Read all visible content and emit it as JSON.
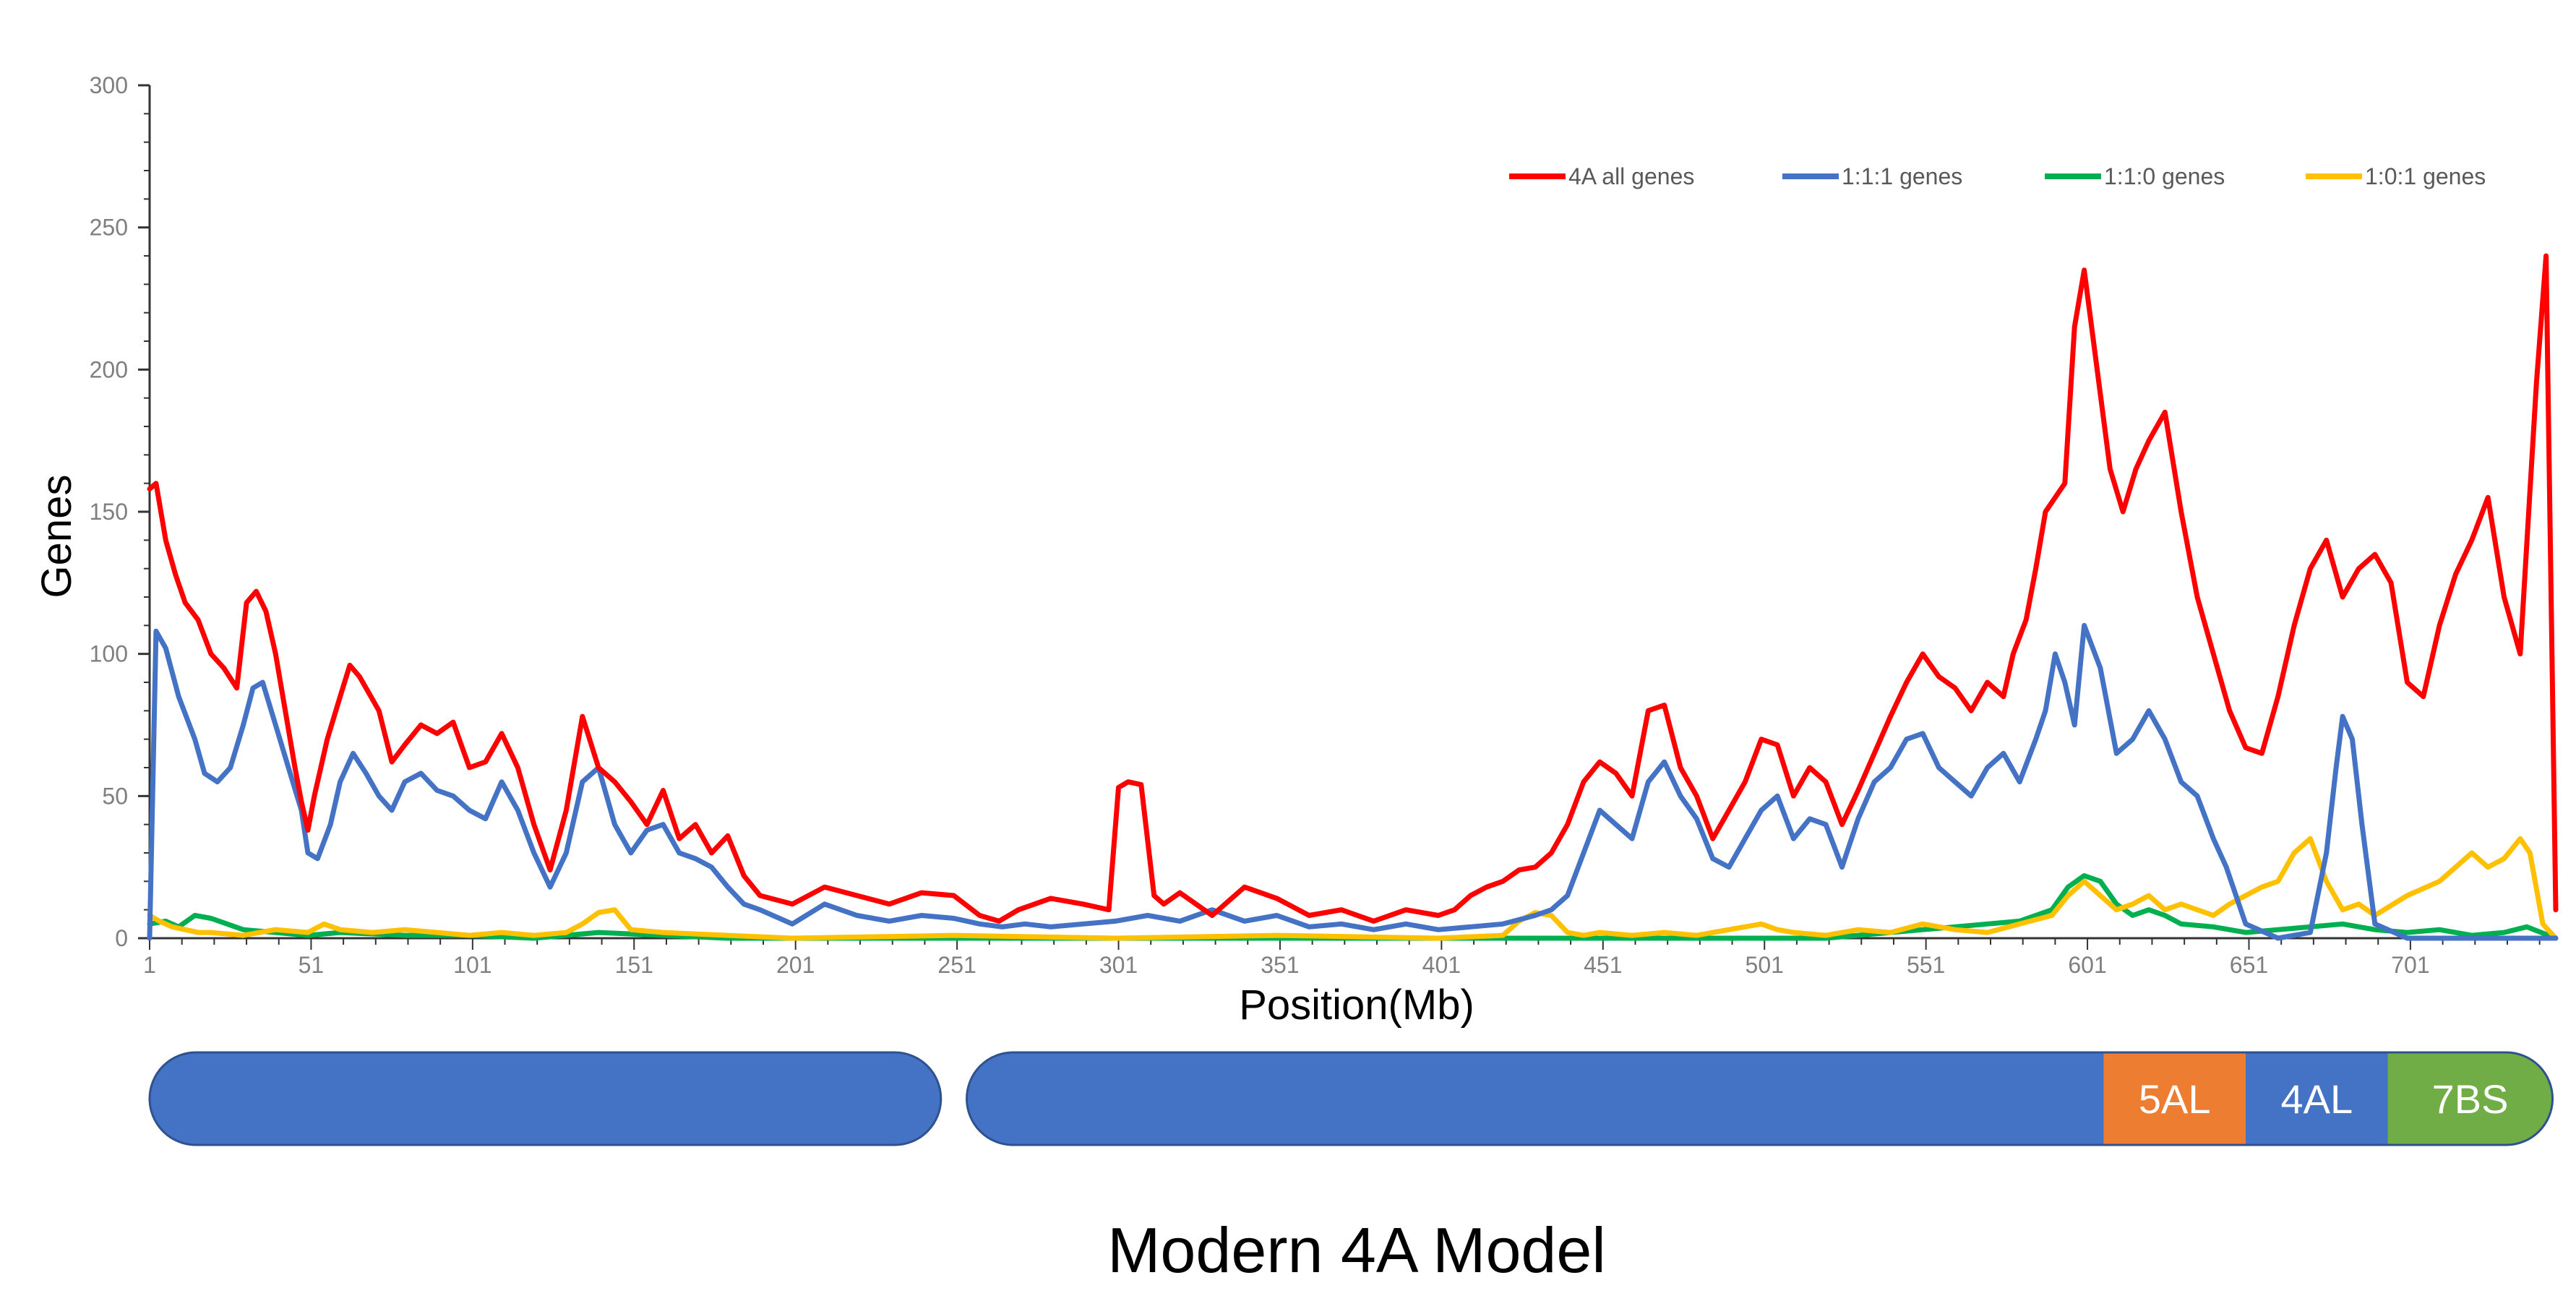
{
  "figure": {
    "title": "Modern 4A Model"
  },
  "chart_data": {
    "type": "line",
    "xlabel": "Position(Mb)",
    "ylabel": "Genes",
    "xlim": [
      1,
      746
    ],
    "ylim": [
      0,
      300
    ],
    "x_ticks": [
      1,
      51,
      101,
      151,
      201,
      251,
      301,
      351,
      401,
      451,
      501,
      551,
      601,
      651,
      701
    ],
    "x_tick_labels": [
      "1",
      "51",
      "101",
      "151",
      "201",
      "251",
      "301",
      "351",
      "401",
      "451",
      "501",
      "551",
      "601",
      "651",
      "701"
    ],
    "y_ticks": [
      0,
      50,
      100,
      150,
      200,
      250,
      300
    ],
    "y_tick_labels": [
      "0",
      "50",
      "100",
      "150",
      "200",
      "250",
      "300"
    ],
    "grid": false,
    "legend_position": "top-right",
    "series": [
      {
        "name": "4A all genes",
        "color": "#ff0000",
        "x": [
          1,
          3,
          6,
          9,
          12,
          16,
          20,
          24,
          28,
          31,
          34,
          37,
          40,
          43,
          46,
          48,
          50,
          52,
          56,
          60,
          63,
          66,
          69,
          72,
          76,
          80,
          85,
          90,
          95,
          100,
          105,
          110,
          115,
          120,
          125,
          130,
          135,
          140,
          145,
          150,
          155,
          160,
          165,
          170,
          175,
          180,
          185,
          190,
          200,
          210,
          220,
          230,
          240,
          250,
          258,
          264,
          270,
          280,
          290,
          298,
          301,
          304,
          308,
          312,
          315,
          320,
          330,
          340,
          350,
          360,
          370,
          380,
          390,
          400,
          405,
          410,
          415,
          420,
          425,
          430,
          435,
          440,
          445,
          450,
          455,
          460,
          465,
          470,
          475,
          480,
          485,
          490,
          495,
          500,
          505,
          510,
          515,
          520,
          525,
          530,
          535,
          540,
          545,
          550,
          555,
          560,
          565,
          570,
          575,
          578,
          582,
          585,
          588,
          591,
          594,
          597,
          600,
          604,
          608,
          612,
          616,
          620,
          625,
          630,
          635,
          640,
          645,
          650,
          655,
          660,
          665,
          670,
          675,
          680,
          685,
          690,
          695,
          700,
          705,
          710,
          715,
          720,
          725,
          730,
          735,
          740,
          743,
          746
        ],
        "y": [
          158,
          160,
          140,
          128,
          118,
          112,
          100,
          95,
          88,
          118,
          122,
          115,
          100,
          80,
          60,
          48,
          38,
          50,
          70,
          85,
          96,
          92,
          86,
          80,
          62,
          68,
          75,
          72,
          76,
          60,
          62,
          72,
          60,
          40,
          24,
          45,
          78,
          60,
          55,
          48,
          40,
          52,
          35,
          40,
          30,
          36,
          22,
          15,
          12,
          18,
          15,
          12,
          16,
          15,
          8,
          6,
          10,
          14,
          12,
          10,
          53,
          55,
          54,
          15,
          12,
          16,
          8,
          18,
          14,
          8,
          10,
          6,
          10,
          8,
          10,
          15,
          18,
          20,
          24,
          25,
          30,
          40,
          55,
          62,
          58,
          50,
          80,
          82,
          60,
          50,
          35,
          45,
          55,
          70,
          68,
          50,
          60,
          55,
          40,
          52,
          65,
          78,
          90,
          100,
          92,
          88,
          80,
          90,
          85,
          100,
          112,
          130,
          150,
          155,
          160,
          215,
          235,
          200,
          165,
          150,
          165,
          175,
          185,
          150,
          120,
          100,
          80,
          67,
          65,
          85,
          110,
          130,
          140,
          120,
          130,
          135,
          125,
          90,
          85,
          110,
          128,
          140,
          155,
          120,
          100,
          195,
          240,
          10
        ],
        "end_drop": true
      },
      {
        "name": "1:1:1 genes",
        "color": "#4472c4",
        "x": [
          1,
          3,
          6,
          10,
          15,
          18,
          22,
          26,
          30,
          33,
          36,
          40,
          44,
          48,
          50,
          53,
          57,
          60,
          64,
          68,
          72,
          76,
          80,
          85,
          90,
          95,
          100,
          105,
          110,
          115,
          120,
          125,
          130,
          135,
          140,
          145,
          150,
          155,
          160,
          165,
          170,
          175,
          180,
          185,
          190,
          200,
          210,
          220,
          230,
          240,
          250,
          258,
          265,
          272,
          280,
          290,
          300,
          310,
          320,
          330,
          340,
          350,
          360,
          370,
          380,
          390,
          400,
          410,
          420,
          430,
          435,
          440,
          445,
          450,
          455,
          460,
          465,
          470,
          475,
          480,
          485,
          490,
          495,
          500,
          505,
          510,
          515,
          520,
          525,
          530,
          535,
          540,
          545,
          550,
          555,
          560,
          565,
          570,
          575,
          580,
          585,
          588,
          591,
          594,
          597,
          600,
          605,
          610,
          615,
          620,
          625,
          630,
          635,
          640,
          644,
          650,
          660,
          670,
          675,
          678,
          680,
          683,
          686,
          690,
          700,
          710,
          720,
          730,
          746
        ],
        "y": [
          0,
          108,
          102,
          85,
          70,
          58,
          55,
          60,
          75,
          88,
          90,
          75,
          60,
          45,
          30,
          28,
          40,
          55,
          65,
          58,
          50,
          45,
          55,
          58,
          52,
          50,
          45,
          42,
          55,
          45,
          30,
          18,
          30,
          55,
          60,
          40,
          30,
          38,
          40,
          30,
          28,
          25,
          18,
          12,
          10,
          5,
          12,
          8,
          6,
          8,
          7,
          5,
          4,
          5,
          4,
          5,
          6,
          8,
          6,
          10,
          6,
          8,
          4,
          5,
          3,
          5,
          3,
          4,
          5,
          8,
          10,
          15,
          30,
          45,
          40,
          35,
          55,
          62,
          50,
          42,
          28,
          25,
          35,
          45,
          50,
          35,
          42,
          40,
          25,
          42,
          55,
          60,
          70,
          72,
          60,
          55,
          50,
          60,
          65,
          55,
          70,
          80,
          100,
          90,
          75,
          110,
          95,
          65,
          70,
          80,
          70,
          55,
          50,
          35,
          25,
          5,
          0,
          2,
          30,
          60,
          78,
          70,
          40,
          5,
          0,
          0,
          0,
          0,
          0
        ]
      },
      {
        "name": "1:1:0 genes",
        "color": "#00b050",
        "x": [
          1,
          6,
          10,
          15,
          20,
          25,
          30,
          40,
          50,
          60,
          80,
          100,
          120,
          140,
          160,
          180,
          200,
          250,
          300,
          350,
          400,
          450,
          500,
          520,
          540,
          550,
          560,
          570,
          580,
          590,
          595,
          600,
          605,
          610,
          615,
          620,
          625,
          630,
          640,
          650,
          660,
          670,
          680,
          690,
          700,
          710,
          720,
          730,
          737,
          746
        ],
        "y": [
          5,
          6,
          4,
          8,
          7,
          5,
          3,
          2,
          1,
          2,
          1,
          1,
          0,
          2,
          1,
          0,
          0,
          0,
          0,
          0,
          0,
          0,
          0,
          0,
          2,
          3,
          4,
          5,
          6,
          10,
          18,
          22,
          20,
          12,
          8,
          10,
          8,
          5,
          4,
          2,
          3,
          4,
          5,
          3,
          2,
          3,
          1,
          2,
          4,
          0
        ]
      },
      {
        "name": "1:0:1 genes",
        "color": "#ffc000",
        "x": [
          1,
          4,
          8,
          12,
          16,
          20,
          30,
          40,
          50,
          55,
          60,
          70,
          80,
          90,
          100,
          110,
          120,
          130,
          135,
          140,
          145,
          150,
          160,
          180,
          200,
          250,
          300,
          350,
          400,
          420,
          425,
          430,
          435,
          440,
          445,
          450,
          460,
          470,
          480,
          490,
          500,
          505,
          510,
          520,
          530,
          540,
          550,
          560,
          570,
          580,
          590,
          595,
          600,
          605,
          610,
          615,
          620,
          625,
          630,
          640,
          645,
          650,
          655,
          660,
          665,
          670,
          675,
          680,
          685,
          690,
          700,
          710,
          715,
          720,
          725,
          730,
          735,
          738,
          742,
          746
        ],
        "y": [
          8,
          6,
          4,
          3,
          2,
          2,
          1,
          3,
          2,
          5,
          3,
          2,
          3,
          2,
          1,
          2,
          1,
          2,
          5,
          9,
          10,
          3,
          2,
          1,
          0,
          1,
          0,
          1,
          0,
          1,
          6,
          9,
          8,
          2,
          1,
          2,
          1,
          2,
          1,
          3,
          5,
          3,
          2,
          1,
          3,
          2,
          5,
          3,
          2,
          5,
          8,
          15,
          20,
          15,
          10,
          12,
          15,
          10,
          12,
          8,
          12,
          15,
          18,
          20,
          30,
          35,
          20,
          10,
          12,
          8,
          15,
          20,
          25,
          30,
          25,
          28,
          35,
          30,
          5,
          0
        ]
      }
    ]
  },
  "karyotype": {
    "segments": [
      {
        "label": "",
        "color": "#4472c4",
        "start": 1,
        "end": 246
      },
      {
        "label": "",
        "color": "#4472c4",
        "start": 254,
        "end": 606
      },
      {
        "label": "5AL",
        "color": "#ed7d31",
        "start": 606,
        "end": 650
      },
      {
        "label": "4AL",
        "color": "#4472c4",
        "start": 650,
        "end": 694
      },
      {
        "label": "7BS",
        "color": "#70ad47",
        "start": 694,
        "end": 745
      }
    ]
  }
}
